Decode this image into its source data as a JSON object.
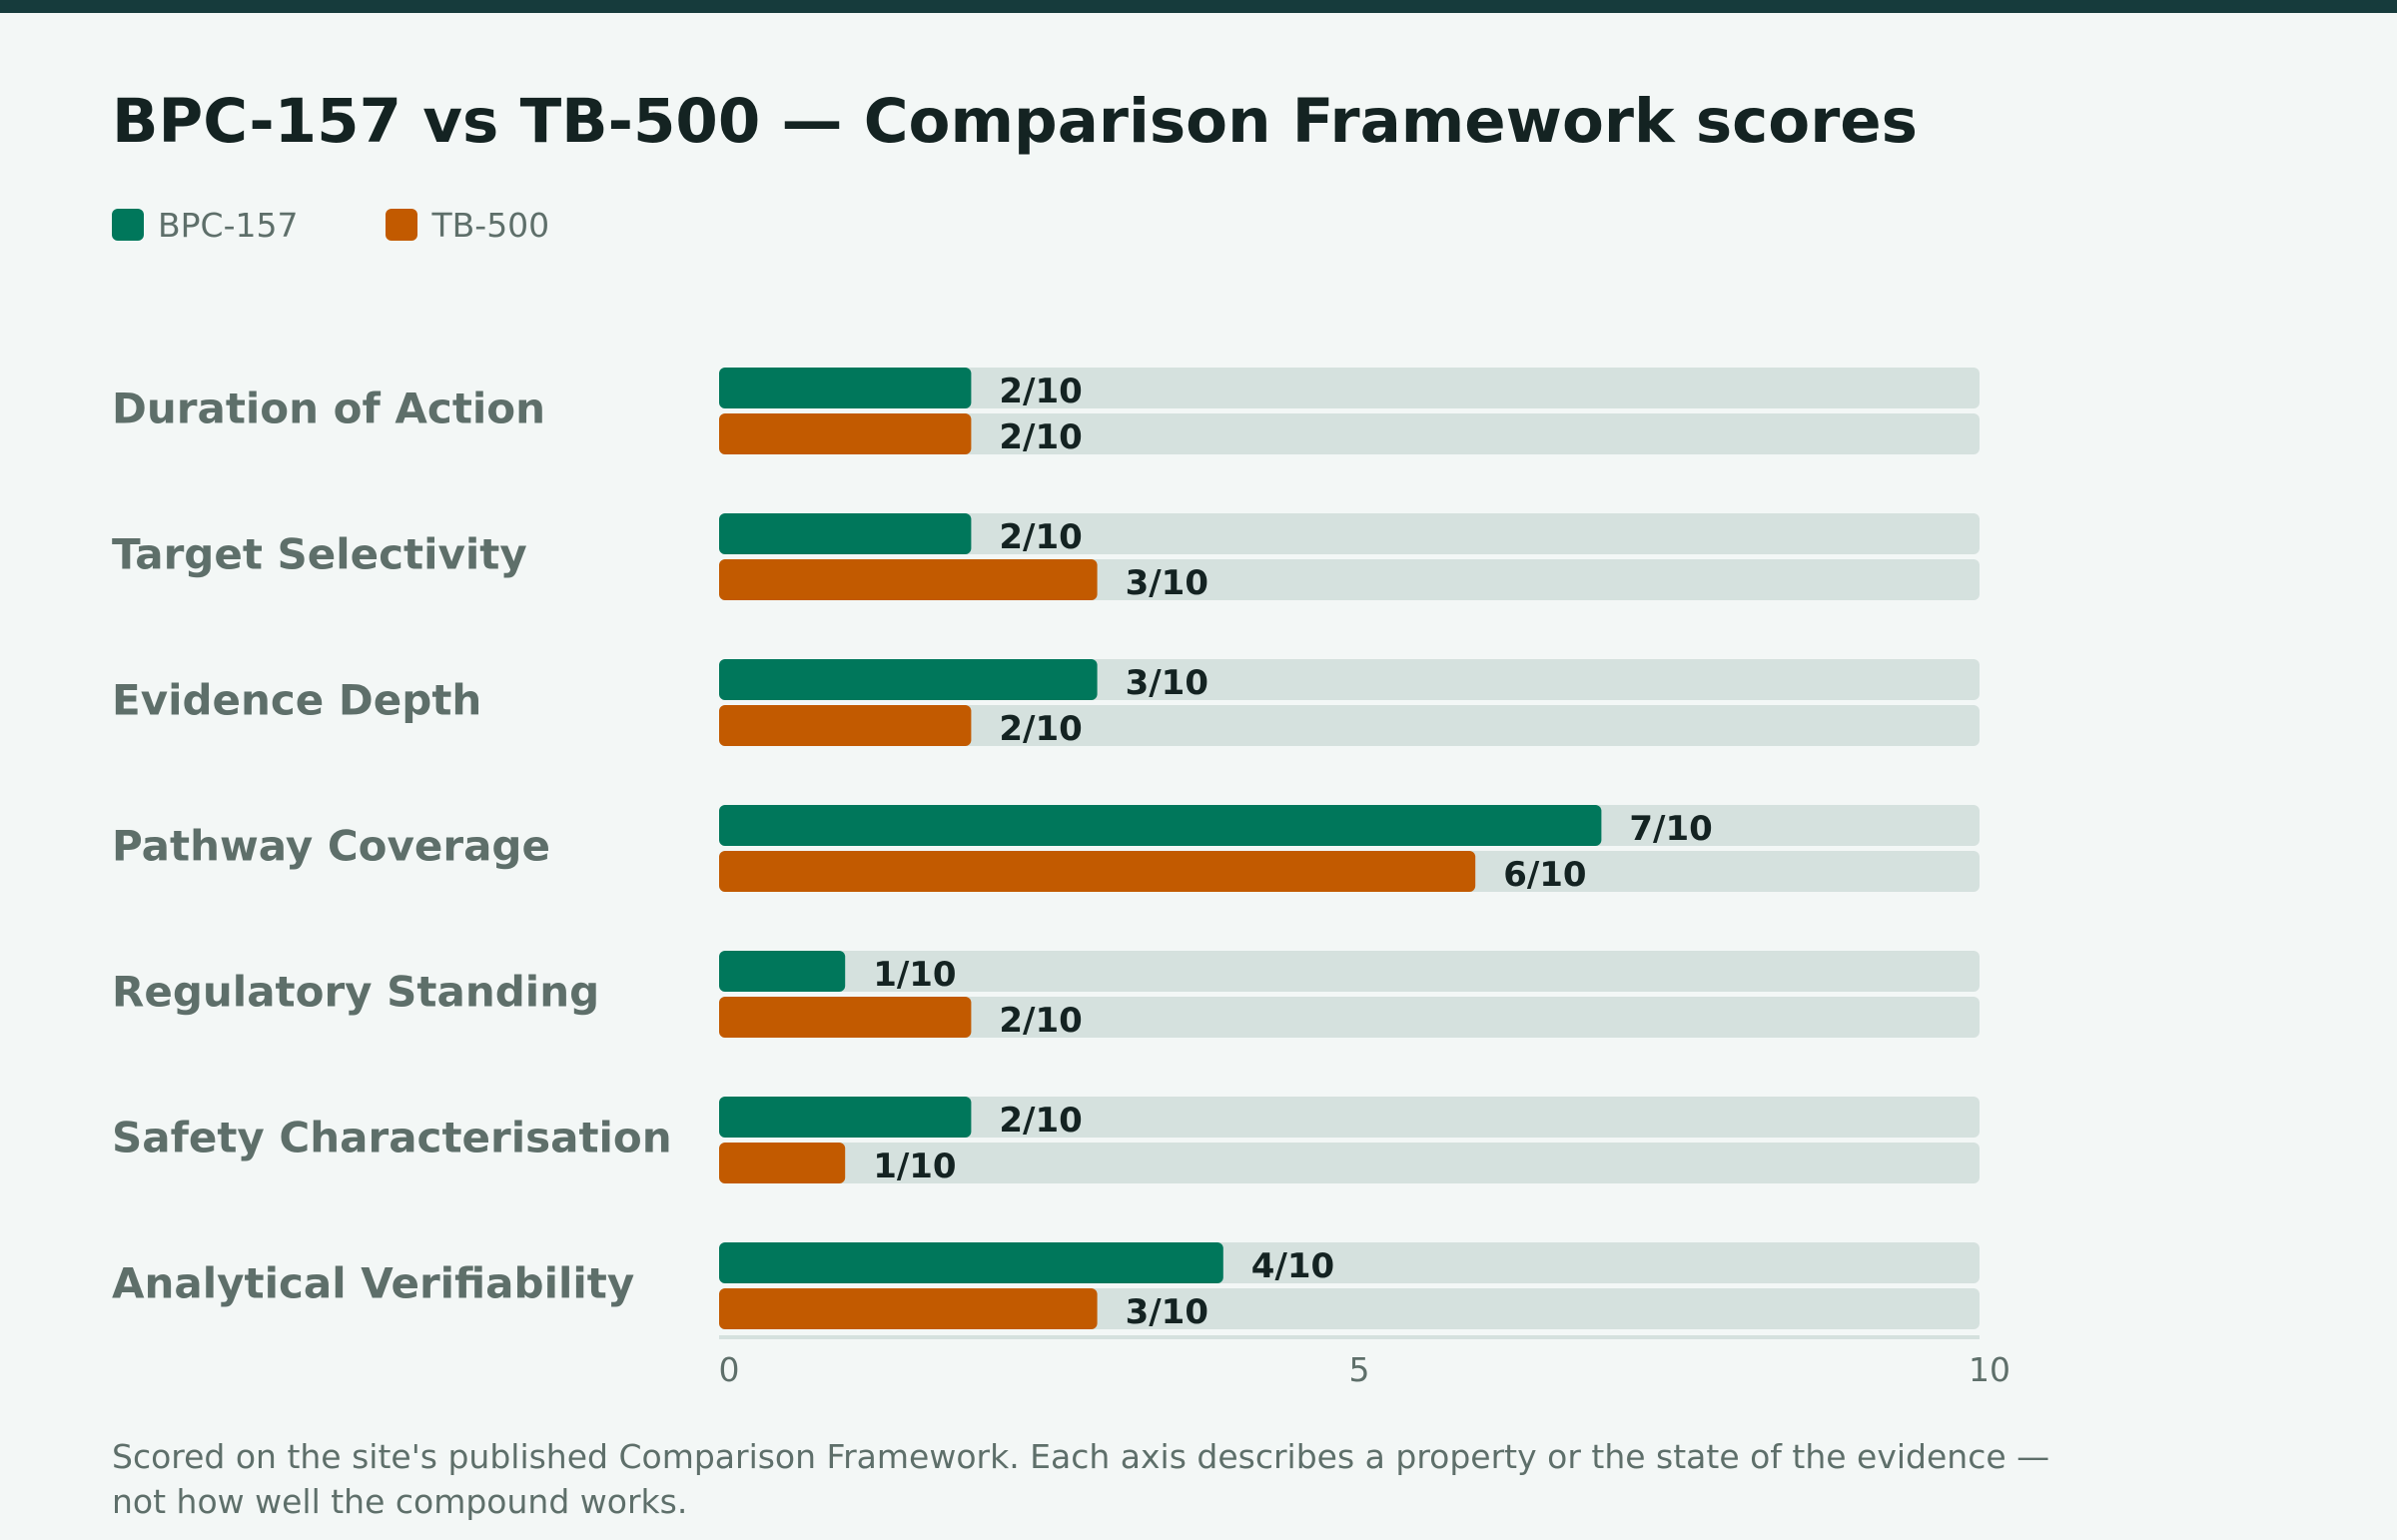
{
  "chart_data": {
    "type": "bar",
    "orientation": "horizontal",
    "title": "BPC-157 vs TB-500 — Comparison Framework scores",
    "categories": [
      "Duration of Action",
      "Target Selectivity",
      "Evidence Depth",
      "Pathway Coverage",
      "Regulatory Standing",
      "Safety Characterisation",
      "Analytical Verifiability"
    ],
    "series": [
      {
        "name": "BPC-157",
        "color": "#00775b",
        "values": [
          2,
          2,
          3,
          7,
          1,
          2,
          4
        ],
        "labels": [
          "2/10",
          "2/10",
          "3/10",
          "7/10",
          "1/10",
          "2/10",
          "4/10"
        ]
      },
      {
        "name": "TB-500",
        "color": "#c25a00",
        "values": [
          2,
          3,
          2,
          6,
          2,
          1,
          3
        ],
        "labels": [
          "2/10",
          "3/10",
          "2/10",
          "6/10",
          "2/10",
          "1/10",
          "3/10"
        ]
      }
    ],
    "xlim": [
      0,
      10
    ],
    "x_ticks": [
      "0",
      "5",
      "10"
    ],
    "legend_position": "top-left",
    "grid": false,
    "track_color": "#d5e1de"
  },
  "footnote": "Scored on the site's published Comparison Framework. Each axis describes a property or the state of the evidence — not how well the compound works."
}
